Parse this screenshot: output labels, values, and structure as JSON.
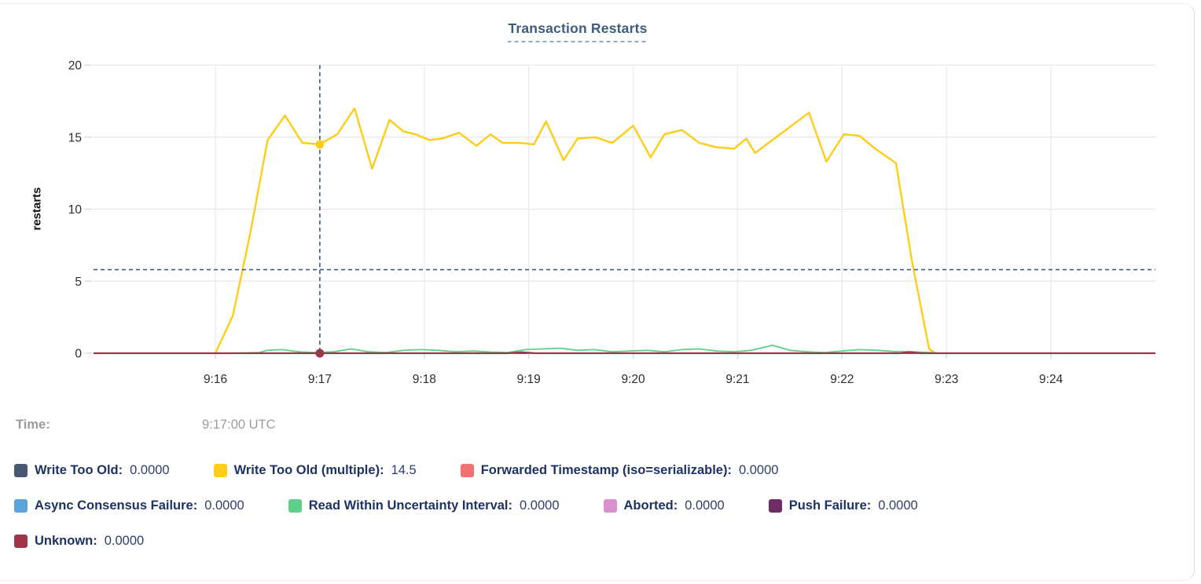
{
  "title": "Transaction Restarts",
  "tooltip": {
    "time_label": "Time:",
    "time_value": "9:17:00 UTC"
  },
  "chart_data": {
    "type": "line",
    "title": "Transaction Restarts",
    "xlabel": "",
    "ylabel": "restarts",
    "ylim": [
      0,
      20
    ],
    "yticks": [
      0,
      5,
      10,
      15,
      20
    ],
    "xticks": [
      "9:16",
      "9:17",
      "9:18",
      "9:19",
      "9:20",
      "9:21",
      "9:22",
      "9:23",
      "9:24"
    ],
    "xtick_offsets_seconds": [
      0,
      60,
      120,
      180,
      240,
      300,
      360,
      420,
      480
    ],
    "x_unit": "seconds since 9:16:00 UTC",
    "x_domain_seconds": [
      -70,
      540
    ],
    "grid": true,
    "legend_position": "bottom",
    "hover": {
      "time": "9:17:00 UTC",
      "x_label": "9:17",
      "x_offset_seconds": 60,
      "crosshair_value": 5.8,
      "points": [
        {
          "series": "Write Too Old (multiple)",
          "value": 14.5
        },
        {
          "series": "Unknown",
          "value": 0
        }
      ]
    },
    "series": [
      {
        "name": "Write Too Old",
        "color": "#475872",
        "hover_value": "0.0000",
        "points": [
          [
            -70,
            0
          ],
          [
            540,
            0
          ]
        ]
      },
      {
        "name": "Write Too Old (multiple)",
        "color": "#ffcd17",
        "hover_value": "14.5",
        "points": [
          [
            0,
            0
          ],
          [
            10,
            2.6
          ],
          [
            20,
            8.3
          ],
          [
            30,
            14.8
          ],
          [
            40,
            16.5
          ],
          [
            50,
            14.6
          ],
          [
            60,
            14.5
          ],
          [
            70,
            15.2
          ],
          [
            80,
            17.0
          ],
          [
            90,
            12.8
          ],
          [
            100,
            16.2
          ],
          [
            108,
            15.4
          ],
          [
            115,
            15.2
          ],
          [
            123,
            14.8
          ],
          [
            130,
            14.9
          ],
          [
            140,
            15.3
          ],
          [
            150,
            14.4
          ],
          [
            158,
            15.2
          ],
          [
            165,
            14.6
          ],
          [
            175,
            14.6
          ],
          [
            183,
            14.5
          ],
          [
            190,
            16.1
          ],
          [
            200,
            13.4
          ],
          [
            208,
            14.9
          ],
          [
            218,
            15.0
          ],
          [
            228,
            14.6
          ],
          [
            240,
            15.8
          ],
          [
            250,
            13.6
          ],
          [
            258,
            15.2
          ],
          [
            268,
            15.5
          ],
          [
            278,
            14.6
          ],
          [
            288,
            14.3
          ],
          [
            298,
            14.2
          ],
          [
            305,
            14.9
          ],
          [
            310,
            13.9
          ],
          [
            320,
            14.8
          ],
          [
            341,
            16.7
          ],
          [
            351,
            13.3
          ],
          [
            361,
            15.2
          ],
          [
            370,
            15.1
          ],
          [
            379,
            14.2
          ],
          [
            391,
            13.2
          ],
          [
            400,
            6.5
          ],
          [
            410,
            0.3
          ],
          [
            413,
            0.05
          ]
        ]
      },
      {
        "name": "Forwarded Timestamp (iso=serializable)",
        "color": "#f0716f",
        "hover_value": "0.0000",
        "points": [
          [
            -70,
            0
          ],
          [
            540,
            0
          ]
        ]
      },
      {
        "name": "Async Consensus Failure",
        "color": "#5ba3d9",
        "hover_value": "0.0000",
        "points": [
          [
            -70,
            0
          ],
          [
            540,
            0
          ]
        ]
      },
      {
        "name": "Read Within Uncertainty Interval",
        "color": "#5fd089",
        "hover_value": "0.0000",
        "points": [
          [
            10,
            0
          ],
          [
            25,
            0.05
          ],
          [
            30,
            0.2
          ],
          [
            38,
            0.25
          ],
          [
            48,
            0.1
          ],
          [
            58,
            0.05
          ],
          [
            68,
            0.1
          ],
          [
            78,
            0.3
          ],
          [
            88,
            0.1
          ],
          [
            98,
            0.05
          ],
          [
            108,
            0.2
          ],
          [
            118,
            0.25
          ],
          [
            128,
            0.2
          ],
          [
            138,
            0.1
          ],
          [
            148,
            0.15
          ],
          [
            158,
            0.08
          ],
          [
            168,
            0.05
          ],
          [
            178,
            0.25
          ],
          [
            188,
            0.3
          ],
          [
            198,
            0.35
          ],
          [
            208,
            0.2
          ],
          [
            218,
            0.25
          ],
          [
            228,
            0.1
          ],
          [
            238,
            0.15
          ],
          [
            248,
            0.2
          ],
          [
            258,
            0.1
          ],
          [
            268,
            0.25
          ],
          [
            278,
            0.3
          ],
          [
            288,
            0.15
          ],
          [
            298,
            0.1
          ],
          [
            308,
            0.2
          ],
          [
            320,
            0.55
          ],
          [
            330,
            0.2
          ],
          [
            340,
            0.1
          ],
          [
            350,
            0.05
          ],
          [
            360,
            0.15
          ],
          [
            370,
            0.25
          ],
          [
            380,
            0.2
          ],
          [
            390,
            0.12
          ],
          [
            400,
            0.1
          ],
          [
            410,
            0.05
          ],
          [
            415,
            0.02
          ]
        ]
      },
      {
        "name": "Aborted",
        "color": "#da8fd0",
        "hover_value": "0.0000",
        "points": [
          [
            -70,
            0
          ],
          [
            540,
            0
          ]
        ]
      },
      {
        "name": "Push Failure",
        "color": "#6e2d64",
        "hover_value": "0.0000",
        "points": [
          [
            -70,
            0
          ],
          [
            540,
            0
          ]
        ]
      },
      {
        "name": "Unknown",
        "color": "#9e3548",
        "hover_value": "0.0000",
        "points": [
          [
            -70,
            0
          ],
          [
            168,
            0
          ],
          [
            176,
            0.07
          ],
          [
            184,
            0
          ],
          [
            393,
            0
          ],
          [
            399,
            0.08
          ],
          [
            405,
            0
          ],
          [
            540,
            0
          ]
        ]
      }
    ]
  }
}
